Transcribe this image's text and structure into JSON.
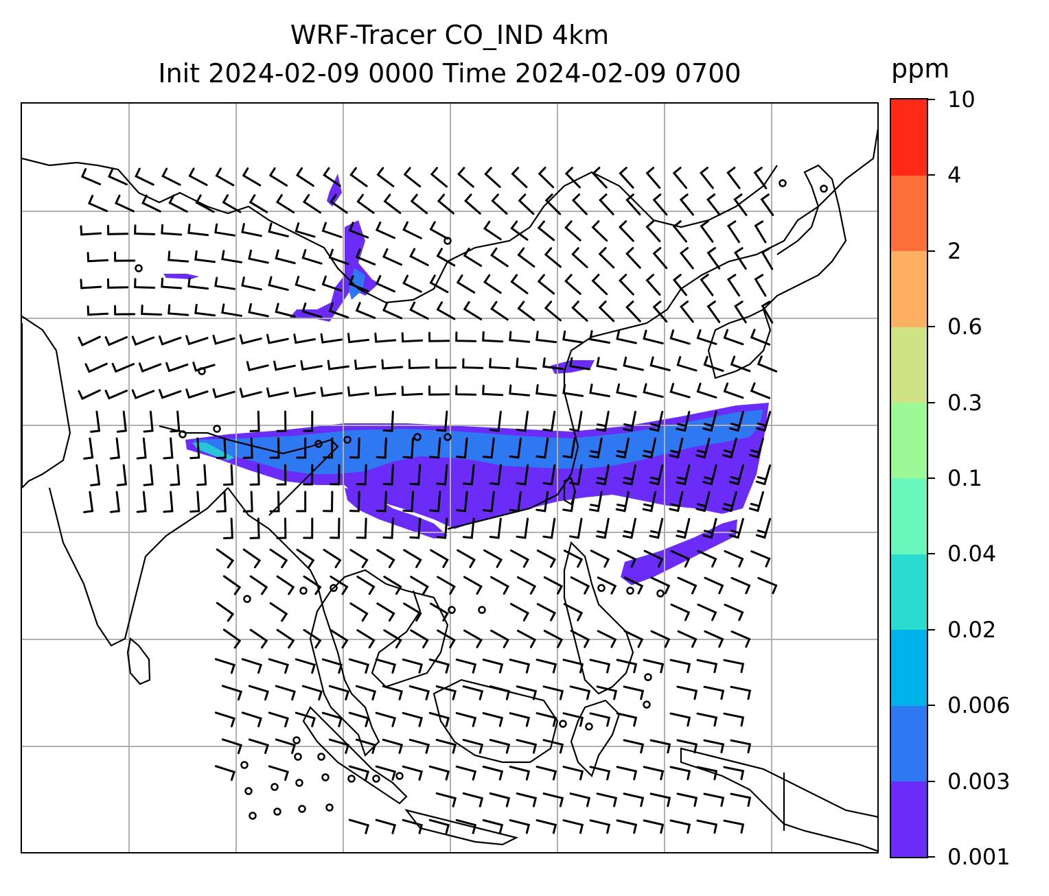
{
  "title": {
    "line1": "WRF-Tracer CO_IND 4km",
    "line2": "Init 2024-02-09 0000 Time 2024-02-09 0700"
  },
  "colorbar": {
    "unit": "ppm",
    "levels": [
      "0.001",
      "0.003",
      "0.006",
      "0.02",
      "0.04",
      "0.1",
      "0.3",
      "0.6",
      "2",
      "4",
      "10"
    ],
    "colors": [
      "#6a2cf6",
      "#2e78f2",
      "#00b3ea",
      "#2adcd0",
      "#69f7bb",
      "#9cf995",
      "#cfe285",
      "#fdb060",
      "#ff6f3a",
      "#ff2a16"
    ]
  },
  "map": {
    "projection_grid": "lat/lon gridlines every 10 degrees",
    "plume_color_low": "#6a2cf6",
    "plume_color_mid": "#2e78f2",
    "plume_color_high": "#29c4d6",
    "coastline_color": "#000000",
    "grid_color": "#b0b0b0",
    "wind_barbs": "black wind barbs on regular grid"
  }
}
